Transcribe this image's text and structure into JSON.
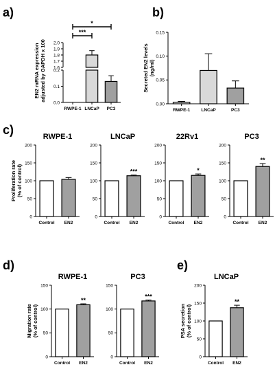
{
  "panel_labels": {
    "a": "a)",
    "b": "b)",
    "c": "c)",
    "d": "d)",
    "e": "e)"
  },
  "colors": {
    "white_bar": "#ffffff",
    "light_bar": "#d9d9d9",
    "grey_bar": "#a0a0a0",
    "outline": "#000000"
  },
  "chart_data": [
    {
      "id": "a",
      "type": "bar",
      "title": "",
      "ylabel": "EN2 mRNA expression adjusted by GAPDH x 100",
      "categories": [
        "RWPE-1",
        "LNCaP",
        "PC3"
      ],
      "values": [
        0.0,
        1.8,
        0.13
      ],
      "errors": [
        0.0,
        0.07,
        0.035
      ],
      "colors": [
        "#ffffff",
        "#d9d9d9",
        "#a0a0a0"
      ],
      "axis_break": true,
      "lower_ylim": [
        0,
        0.2
      ],
      "lower_yticks": [
        "0.0",
        "0.1",
        "0.2"
      ],
      "upper_ylim": [
        1.6,
        2.0
      ],
      "upper_yticks": [
        "1.6",
        "1.7",
        "1.8",
        "1.9",
        "2.0"
      ],
      "comparisons": [
        {
          "from": "RWPE-1",
          "to": "LNCaP",
          "label": "***"
        },
        {
          "from": "RWPE-1",
          "to": "PC3",
          "label": "*"
        }
      ]
    },
    {
      "id": "b",
      "type": "bar",
      "title": "",
      "ylabel": "Secreted EN2 levels (ng/ml)",
      "categories": [
        "RWPE-1",
        "LNCaP",
        "PC3"
      ],
      "values": [
        0.003,
        0.07,
        0.033
      ],
      "errors": [
        0.002,
        0.035,
        0.015
      ],
      "colors": [
        "#ffffff",
        "#d9d9d9",
        "#a0a0a0"
      ],
      "ylim": [
        0,
        0.15
      ],
      "yticks": [
        "0.00",
        "0.05",
        "0.10",
        "0.15"
      ]
    },
    {
      "id": "c1",
      "type": "bar",
      "title": "RWPE-1",
      "ylabel": "Proliferation rate (% of control)",
      "categories": [
        "Control",
        "EN2"
      ],
      "values": [
        100,
        104
      ],
      "errors": [
        0,
        5
      ],
      "colors": [
        "#ffffff",
        "#a0a0a0"
      ],
      "significance": [
        "",
        ""
      ],
      "ylim": [
        0,
        200
      ],
      "yticks": [
        "0",
        "50",
        "100",
        "150",
        "200"
      ]
    },
    {
      "id": "c2",
      "type": "bar",
      "title": "LNCaP",
      "ylabel": "",
      "categories": [
        "Control",
        "EN2"
      ],
      "values": [
        100,
        114
      ],
      "errors": [
        0,
        2
      ],
      "colors": [
        "#ffffff",
        "#a0a0a0"
      ],
      "significance": [
        "",
        "***"
      ],
      "ylim": [
        0,
        200
      ],
      "yticks": [
        "0",
        "50",
        "100",
        "150",
        "200"
      ]
    },
    {
      "id": "c3",
      "type": "bar",
      "title": "22Rv1",
      "ylabel": "",
      "categories": [
        "Control",
        "EN2"
      ],
      "values": [
        100,
        115
      ],
      "errors": [
        0,
        4
      ],
      "colors": [
        "#ffffff",
        "#a0a0a0"
      ],
      "significance": [
        "",
        "*"
      ],
      "ylim": [
        0,
        200
      ],
      "yticks": [
        "0",
        "50",
        "100",
        "150",
        "200"
      ]
    },
    {
      "id": "c4",
      "type": "bar",
      "title": "PC3",
      "ylabel": "",
      "categories": [
        "Control",
        "EN2"
      ],
      "values": [
        100,
        140
      ],
      "errors": [
        0,
        8
      ],
      "colors": [
        "#ffffff",
        "#a0a0a0"
      ],
      "significance": [
        "",
        "**"
      ],
      "ylim": [
        0,
        200
      ],
      "yticks": [
        "0",
        "50",
        "100",
        "150",
        "200"
      ]
    },
    {
      "id": "d1",
      "type": "bar",
      "title": "RWPE-1",
      "ylabel": "Migration rate (% of control)",
      "categories": [
        "Control",
        "EN2"
      ],
      "values": [
        100,
        109
      ],
      "errors": [
        0,
        2
      ],
      "colors": [
        "#ffffff",
        "#a0a0a0"
      ],
      "significance": [
        "",
        "**"
      ],
      "ylim": [
        0,
        150
      ],
      "yticks": [
        "0",
        "50",
        "100",
        "150"
      ]
    },
    {
      "id": "d2",
      "type": "bar",
      "title": "PC3",
      "ylabel": "",
      "categories": [
        "Control",
        "EN2"
      ],
      "values": [
        100,
        117
      ],
      "errors": [
        0,
        2
      ],
      "colors": [
        "#ffffff",
        "#a0a0a0"
      ],
      "significance": [
        "",
        "***"
      ],
      "ylim": [
        0,
        150
      ],
      "yticks": [
        "0",
        "50",
        "100",
        "150"
      ]
    },
    {
      "id": "e",
      "type": "bar",
      "title": "LNCaP",
      "ylabel": "PSA secretion (% of control)",
      "categories": [
        "Control",
        "EN2"
      ],
      "values": [
        100,
        137
      ],
      "errors": [
        0,
        7
      ],
      "colors": [
        "#ffffff",
        "#a0a0a0"
      ],
      "significance": [
        "",
        "**"
      ],
      "ylim": [
        0,
        200
      ],
      "yticks": [
        "0",
        "50",
        "100",
        "150",
        "200"
      ]
    }
  ]
}
